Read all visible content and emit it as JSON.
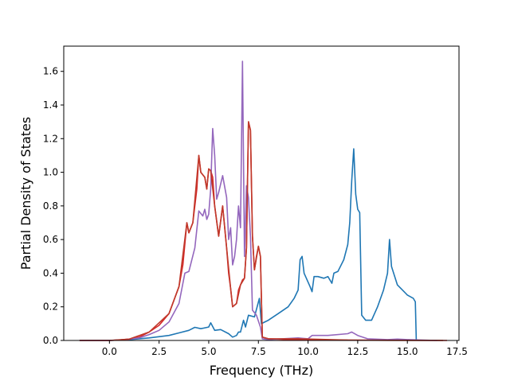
{
  "chart_data": {
    "type": "line",
    "title": "",
    "xlabel": "Frequency (THz)",
    "ylabel": "Partial Density of States",
    "xlim": [
      -2.3,
      17.6
    ],
    "ylim": [
      0,
      1.75
    ],
    "xticks": [
      "0.0",
      "2.5",
      "5.0",
      "7.5",
      "10.0",
      "12.5",
      "15.0",
      "17.5"
    ],
    "xtick_values": [
      0,
      2.5,
      5,
      7.5,
      10,
      12.5,
      15,
      17.5
    ],
    "yticks": [
      "0.0",
      "0.2",
      "0.4",
      "0.6",
      "0.8",
      "1.0",
      "1.2",
      "1.4",
      "1.6"
    ],
    "ytick_values": [
      0,
      0.2,
      0.4,
      0.6,
      0.8,
      1.0,
      1.2,
      1.4,
      1.6
    ],
    "grid": false,
    "legend": "none",
    "series": [
      {
        "color": "#1f77b4",
        "points": [
          [
            -1.5,
            0
          ],
          [
            0,
            0
          ],
          [
            1,
            0.005
          ],
          [
            2,
            0.015
          ],
          [
            3,
            0.03
          ],
          [
            3.5,
            0.045
          ],
          [
            4,
            0.06
          ],
          [
            4.3,
            0.078
          ],
          [
            4.6,
            0.07
          ],
          [
            5,
            0.08
          ],
          [
            5.1,
            0.105
          ],
          [
            5.3,
            0.06
          ],
          [
            5.6,
            0.065
          ],
          [
            6,
            0.04
          ],
          [
            6.2,
            0.02
          ],
          [
            6.4,
            0.03
          ],
          [
            6.5,
            0.05
          ],
          [
            6.6,
            0.05
          ],
          [
            6.75,
            0.12
          ],
          [
            6.85,
            0.08
          ],
          [
            7.0,
            0.15
          ],
          [
            7.3,
            0.14
          ],
          [
            7.55,
            0.25
          ],
          [
            7.65,
            0.1
          ],
          [
            8,
            0.12
          ],
          [
            8.5,
            0.16
          ],
          [
            9,
            0.2
          ],
          [
            9.3,
            0.25
          ],
          [
            9.5,
            0.3
          ],
          [
            9.6,
            0.48
          ],
          [
            9.7,
            0.5
          ],
          [
            9.8,
            0.4
          ],
          [
            10.1,
            0.32
          ],
          [
            10.2,
            0.29
          ],
          [
            10.3,
            0.38
          ],
          [
            10.5,
            0.38
          ],
          [
            10.8,
            0.37
          ],
          [
            11,
            0.38
          ],
          [
            11.2,
            0.34
          ],
          [
            11.3,
            0.4
          ],
          [
            11.5,
            0.41
          ],
          [
            11.8,
            0.48
          ],
          [
            12,
            0.57
          ],
          [
            12.1,
            0.7
          ],
          [
            12.2,
            0.95
          ],
          [
            12.3,
            1.14
          ],
          [
            12.4,
            0.87
          ],
          [
            12.5,
            0.78
          ],
          [
            12.6,
            0.76
          ],
          [
            12.7,
            0.15
          ],
          [
            12.9,
            0.12
          ],
          [
            13.2,
            0.12
          ],
          [
            13.5,
            0.2
          ],
          [
            13.8,
            0.3
          ],
          [
            14.0,
            0.4
          ],
          [
            14.1,
            0.6
          ],
          [
            14.2,
            0.44
          ],
          [
            14.5,
            0.33
          ],
          [
            15.0,
            0.27
          ],
          [
            15.3,
            0.25
          ],
          [
            15.4,
            0.23
          ],
          [
            15.45,
            0
          ]
        ]
      },
      {
        "color": "#d62728",
        "points": [
          [
            -1.5,
            0
          ],
          [
            0,
            0
          ],
          [
            0.5,
            0.003
          ],
          [
            1,
            0.008
          ],
          [
            1.5,
            0.02
          ],
          [
            2,
            0.05
          ],
          [
            2.5,
            0.09
          ],
          [
            3,
            0.16
          ],
          [
            3.5,
            0.32
          ],
          [
            3.7,
            0.45
          ],
          [
            3.9,
            0.7
          ],
          [
            4.0,
            0.64
          ],
          [
            4.2,
            0.7
          ],
          [
            4.4,
            0.9
          ],
          [
            4.5,
            1.1
          ],
          [
            4.6,
            1.0
          ],
          [
            4.8,
            0.97
          ],
          [
            4.9,
            0.9
          ],
          [
            5.0,
            1.02
          ],
          [
            5.1,
            1.01
          ],
          [
            5.2,
            0.97
          ],
          [
            5.3,
            0.8
          ],
          [
            5.5,
            0.62
          ],
          [
            5.7,
            0.8
          ],
          [
            5.9,
            0.55
          ],
          [
            6.0,
            0.4
          ],
          [
            6.1,
            0.31
          ],
          [
            6.2,
            0.2
          ],
          [
            6.4,
            0.22
          ],
          [
            6.5,
            0.3
          ],
          [
            6.6,
            0.33
          ],
          [
            6.7,
            0.36
          ],
          [
            6.8,
            0.37
          ],
          [
            6.9,
            0.55
          ],
          [
            7.0,
            1.3
          ],
          [
            7.1,
            1.25
          ],
          [
            7.2,
            0.62
          ],
          [
            7.3,
            0.42
          ],
          [
            7.4,
            0.5
          ],
          [
            7.5,
            0.56
          ],
          [
            7.6,
            0.5
          ],
          [
            7.7,
            0.02
          ],
          [
            8,
            0.01
          ],
          [
            9,
            0.005
          ],
          [
            10,
            0.003
          ],
          [
            12,
            0.002
          ],
          [
            14,
            0.001
          ],
          [
            17,
            0
          ]
        ]
      },
      {
        "color": "#9467bd",
        "points": [
          [
            -1.5,
            0
          ],
          [
            0,
            0
          ],
          [
            0.5,
            0.003
          ],
          [
            1,
            0.008
          ],
          [
            1.5,
            0.015
          ],
          [
            2,
            0.035
          ],
          [
            2.5,
            0.06
          ],
          [
            3,
            0.11
          ],
          [
            3.5,
            0.22
          ],
          [
            3.8,
            0.4
          ],
          [
            4.0,
            0.41
          ],
          [
            4.3,
            0.55
          ],
          [
            4.5,
            0.77
          ],
          [
            4.7,
            0.74
          ],
          [
            4.8,
            0.78
          ],
          [
            4.9,
            0.72
          ],
          [
            5.0,
            0.75
          ],
          [
            5.1,
            0.9
          ],
          [
            5.2,
            1.26
          ],
          [
            5.3,
            1.1
          ],
          [
            5.4,
            0.84
          ],
          [
            5.5,
            0.88
          ],
          [
            5.7,
            0.98
          ],
          [
            5.9,
            0.85
          ],
          [
            6.0,
            0.6
          ],
          [
            6.1,
            0.67
          ],
          [
            6.2,
            0.45
          ],
          [
            6.3,
            0.5
          ],
          [
            6.4,
            0.6
          ],
          [
            6.5,
            0.8
          ],
          [
            6.6,
            0.67
          ],
          [
            6.7,
            1.66
          ],
          [
            6.8,
            0.5
          ],
          [
            6.9,
            0.92
          ],
          [
            7.0,
            0.85
          ],
          [
            7.1,
            0.62
          ],
          [
            7.2,
            0.18
          ],
          [
            7.4,
            0.15
          ],
          [
            7.6,
            0.08
          ],
          [
            7.7,
            0.01
          ],
          [
            8,
            0.005
          ],
          [
            9.5,
            0.015
          ],
          [
            10,
            0.01
          ],
          [
            10.2,
            0.03
          ],
          [
            11,
            0.03
          ],
          [
            12,
            0.04
          ],
          [
            12.2,
            0.05
          ],
          [
            12.5,
            0.03
          ],
          [
            13,
            0.01
          ],
          [
            14,
            0.005
          ],
          [
            14.5,
            0.008
          ],
          [
            15,
            0.005
          ],
          [
            16.5,
            0
          ]
        ]
      },
      {
        "color": "#c0392b",
        "points": [
          [
            -1.5,
            0
          ],
          [
            0,
            0
          ],
          [
            1,
            0.008
          ],
          [
            2,
            0.05
          ],
          [
            3,
            0.16
          ],
          [
            3.5,
            0.32
          ],
          [
            3.9,
            0.7
          ],
          [
            4.0,
            0.64
          ],
          [
            4.2,
            0.7
          ],
          [
            4.5,
            1.1
          ],
          [
            4.6,
            1.0
          ],
          [
            4.8,
            0.97
          ],
          [
            4.9,
            0.9
          ],
          [
            5.0,
            1.02
          ],
          [
            5.1,
            1.01
          ],
          [
            5.3,
            0.8
          ],
          [
            5.5,
            0.62
          ],
          [
            5.7,
            0.8
          ],
          [
            5.9,
            0.55
          ],
          [
            6.1,
            0.31
          ],
          [
            6.2,
            0.2
          ],
          [
            6.4,
            0.22
          ],
          [
            6.6,
            0.33
          ],
          [
            6.8,
            0.37
          ],
          [
            6.9,
            0.55
          ],
          [
            7.0,
            1.3
          ],
          [
            7.1,
            1.25
          ],
          [
            7.2,
            0.62
          ],
          [
            7.3,
            0.42
          ],
          [
            7.5,
            0.56
          ],
          [
            7.6,
            0.5
          ],
          [
            7.7,
            0.02
          ],
          [
            8,
            0.01
          ],
          [
            9.5,
            0.01
          ],
          [
            12,
            0.002
          ],
          [
            16.8,
            0
          ]
        ]
      }
    ]
  }
}
